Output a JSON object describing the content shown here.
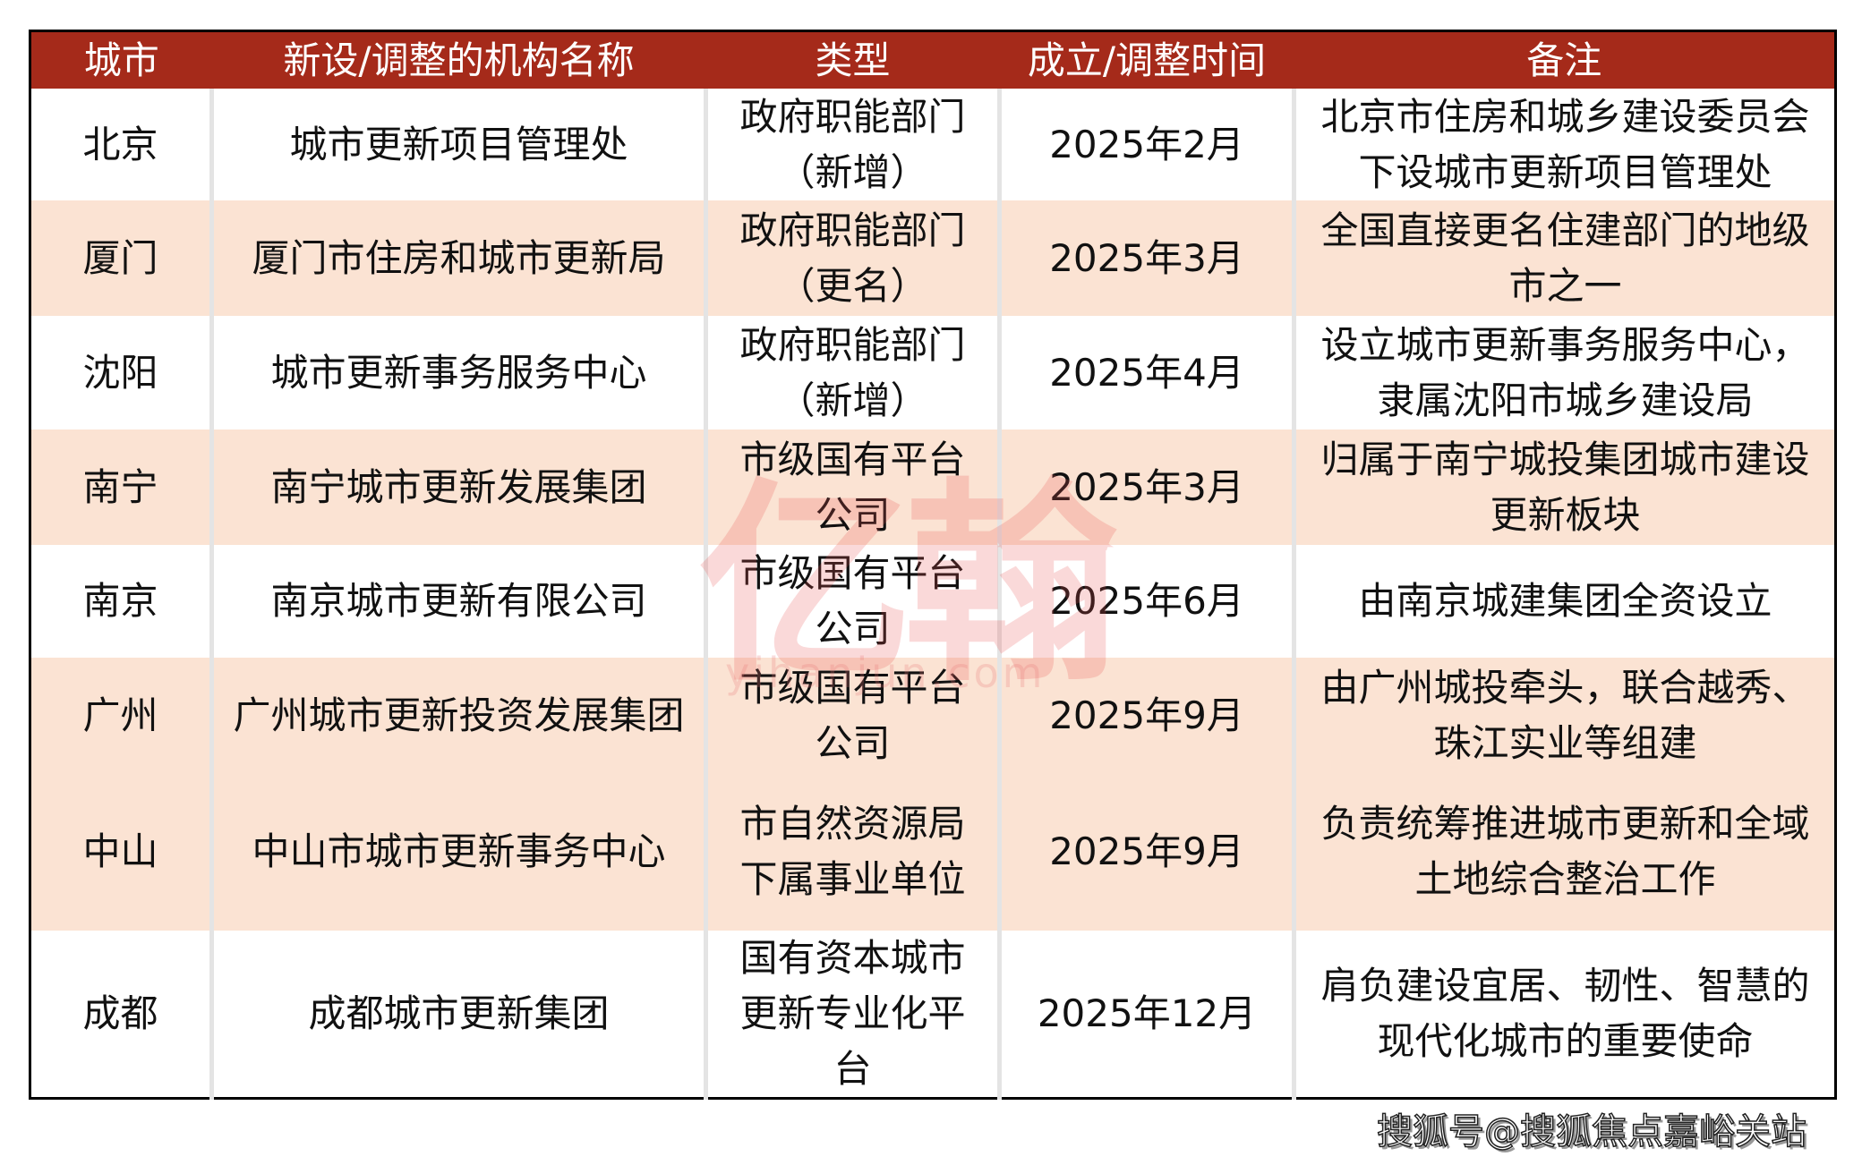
{
  "table": {
    "headers": [
      "城市",
      "新设/调整的机构名称",
      "类型",
      "成立/调整时间",
      "备注"
    ],
    "rows": [
      {
        "city": "北京",
        "name": "城市更新项目管理处",
        "type": [
          "政府职能部门",
          "（新增）"
        ],
        "time": "2025年2月",
        "note": [
          "北京市住房和城乡建设委员会",
          "下设城市更新项目管理处"
        ]
      },
      {
        "city": "厦门",
        "name": "厦门市住房和城市更新局",
        "type": [
          "政府职能部门",
          "（更名）"
        ],
        "time": "2025年3月",
        "note": [
          "全国直接更名住建部门的地级",
          "市之一"
        ]
      },
      {
        "city": "沈阳",
        "name": "城市更新事务服务中心",
        "type": [
          "政府职能部门",
          "（新增）"
        ],
        "time": "2025年4月",
        "note": [
          "设立城市更新事务服务中心，",
          "隶属沈阳市城乡建设局"
        ]
      },
      {
        "city": "南宁",
        "name": "南宁城市更新发展集团",
        "type": [
          "市级国有平台",
          "公司"
        ],
        "time": "2025年3月",
        "note": [
          "归属于南宁城投集团城市建设",
          "更新板块"
        ]
      },
      {
        "city": "南京",
        "name": "南京城市更新有限公司",
        "type": [
          "市级国有平台",
          "公司"
        ],
        "time": "2025年6月",
        "note": [
          "由南京城建集团全资设立"
        ]
      },
      {
        "city": "广州",
        "name": "广州城市更新投资发展集团",
        "type": [
          "市级国有平台",
          "公司"
        ],
        "time": "2025年9月",
        "note": [
          "由广州城投牵头，联合越秀、",
          "珠江实业等组建"
        ]
      },
      {
        "city": "中山",
        "name": "中山市城市更新事务中心",
        "type": [
          "市自然资源局",
          "下属事业单位"
        ],
        "time": "2025年9月",
        "note": [
          "负责统筹推进城市更新和全域",
          "土地综合整治工作"
        ]
      },
      {
        "city": "成都",
        "name": "成都城市更新集团",
        "type": [
          "国有资本城市",
          "更新专业化平",
          "台"
        ],
        "time": "2025年12月",
        "note": [
          "肩负建设宜居、韧性、智慧的",
          "现代化城市的重要使命"
        ]
      }
    ]
  },
  "watermark": {
    "logo": "亿翰",
    "url": "yihanjun.com"
  },
  "footer": "搜狐号@搜狐焦点嘉峪关站",
  "colors": {
    "header_bg": "#a52a1a",
    "row_alt": "#fbe3d3"
  }
}
